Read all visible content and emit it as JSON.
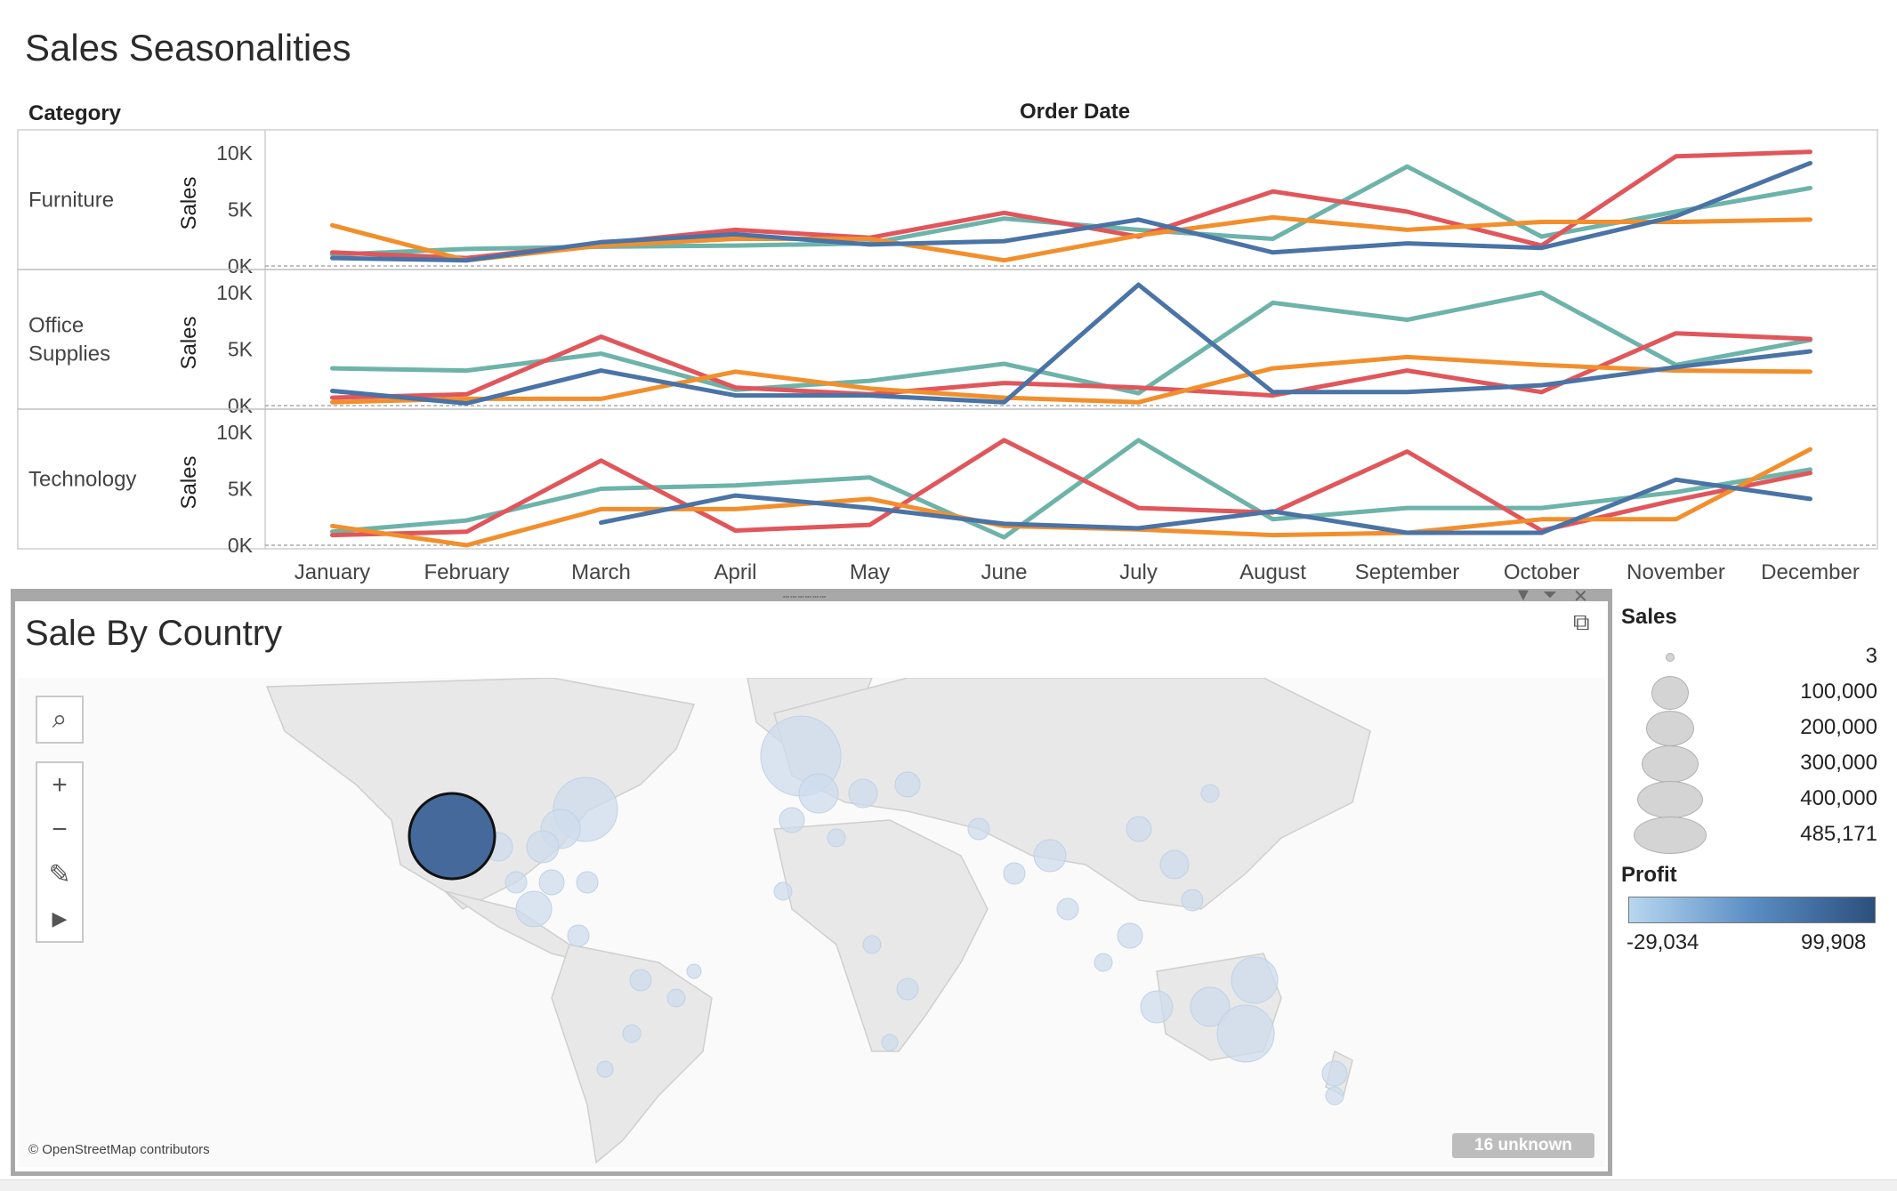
{
  "top_title": "Sales Seasonalities",
  "headers": {
    "category": "Category",
    "order_date": "Order Date"
  },
  "chart_data": {
    "type": "line",
    "title": "Sales Seasonalities",
    "x": [
      "January",
      "February",
      "March",
      "April",
      "May",
      "June",
      "July",
      "August",
      "September",
      "October",
      "November",
      "December"
    ],
    "ylabel": "Sales",
    "ylim": [
      0,
      10000
    ],
    "y_ticks": [
      "0K",
      "5K",
      "10K"
    ],
    "series_colors": [
      "#6db3aa",
      "#e0565b",
      "#f28f2d",
      "#4a73a6"
    ],
    "panels": [
      {
        "category": "Furniture",
        "series": [
          {
            "values": [
              1000,
              1500,
              1700,
              1800,
              2000,
              4200,
              3200,
              2400,
              8800,
              2600,
              4800,
              6900
            ]
          },
          {
            "values": [
              1200,
              700,
              2000,
              3200,
              2500,
              4700,
              2600,
              6600,
              4800,
              1800,
              9700,
              10100
            ]
          },
          {
            "values": [
              3600,
              500,
              1800,
              2400,
              2400,
              500,
              2700,
              4300,
              3200,
              3900,
              3900,
              4100
            ]
          },
          {
            "values": [
              700,
              500,
              2100,
              2800,
              1900,
              2200,
              4100,
              1200,
              2000,
              1600,
              4400,
              9100
            ]
          }
        ]
      },
      {
        "category": "Office Supplies",
        "series": [
          {
            "values": [
              3300,
              3100,
              4600,
              1400,
              2200,
              3700,
              1100,
              9100,
              7600,
              10000,
              3600,
              5800
            ]
          },
          {
            "values": [
              700,
              1000,
              6100,
              1600,
              1000,
              2000,
              1600,
              900,
              3100,
              1200,
              6400,
              5900
            ]
          },
          {
            "values": [
              300,
              600,
              600,
              3000,
              1500,
              700,
              300,
              3300,
              4300,
              3600,
              3100,
              3000
            ]
          },
          {
            "values": [
              1300,
              200,
              3100,
              900,
              900,
              300,
              10700,
              1200,
              1200,
              1800,
              3400,
              4800
            ]
          }
        ]
      },
      {
        "category": "Technology",
        "series": [
          {
            "values": [
              1200,
              2200,
              5000,
              5300,
              6000,
              700,
              9300,
              2300,
              3300,
              3300,
              4700,
              6700
            ]
          },
          {
            "values": [
              900,
              1200,
              7500,
              1300,
              1800,
              9300,
              3300,
              2900,
              8300,
              1300,
              4000,
              6400
            ]
          },
          {
            "values": [
              1700,
              0,
              3200,
              3200,
              4100,
              1700,
              1400,
              900,
              1100,
              2300,
              2300,
              8500
            ]
          },
          {
            "values": [
              null,
              null,
              2000,
              4400,
              3300,
              1900,
              1500,
              3000,
              1100,
              1100,
              5800,
              4100
            ]
          }
        ]
      }
    ]
  },
  "map": {
    "title": "Sale By Country",
    "attribution": "© OpenStreetMap contributors",
    "unknown_label": "16 unknown",
    "tools": {
      "search": "search-icon",
      "zoom_in": "+",
      "zoom_out": "−",
      "pin": "pin-icon",
      "play": "play-icon"
    }
  },
  "legend": {
    "sales_title": "Sales",
    "sales_sizes": [
      "3",
      "100,000",
      "200,000",
      "300,000",
      "400,000",
      "485,171"
    ],
    "profit_title": "Profit",
    "profit_min": "-29,034",
    "profit_max": "99,908",
    "profit_colors": [
      "#b8d7f0",
      "#2c4f7c"
    ]
  }
}
